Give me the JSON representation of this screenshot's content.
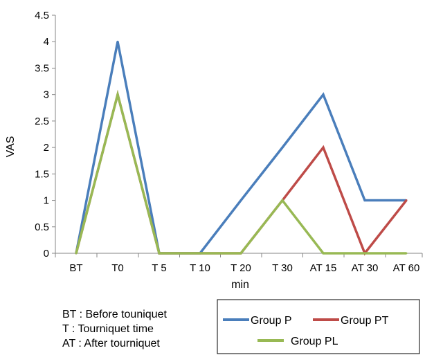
{
  "chart_data": {
    "type": "line",
    "categories": [
      "BT",
      "T0",
      "T 5",
      "T 10",
      "T 20",
      "T 30",
      "AT 15",
      "AT 30",
      "AT 60"
    ],
    "series": [
      {
        "name": "Group P",
        "color": "#4a7ebb",
        "values": [
          0,
          4,
          0,
          0,
          1,
          2,
          3,
          1,
          1
        ]
      },
      {
        "name": "Group PT",
        "color": "#be4b48",
        "values": [
          0,
          3,
          0,
          0,
          0,
          1,
          2,
          0,
          1
        ]
      },
      {
        "name": "Group PL",
        "color": "#98b954",
        "values": [
          0,
          3,
          0,
          0,
          0,
          1,
          0,
          0,
          0
        ]
      }
    ],
    "xlabel": "min",
    "ylabel": "VAS",
    "ylim": [
      0,
      4.5
    ],
    "yticks": [
      "0",
      "0.5",
      "1",
      "1.5",
      "2",
      "2.5",
      "3",
      "3.5",
      "4",
      "4.5"
    ],
    "grid": false,
    "legend_position": "bottom-right"
  },
  "notes": [
    "BT : Before touniquet",
    "T : Tourniquet time",
    "AT : After tourniquet"
  ]
}
